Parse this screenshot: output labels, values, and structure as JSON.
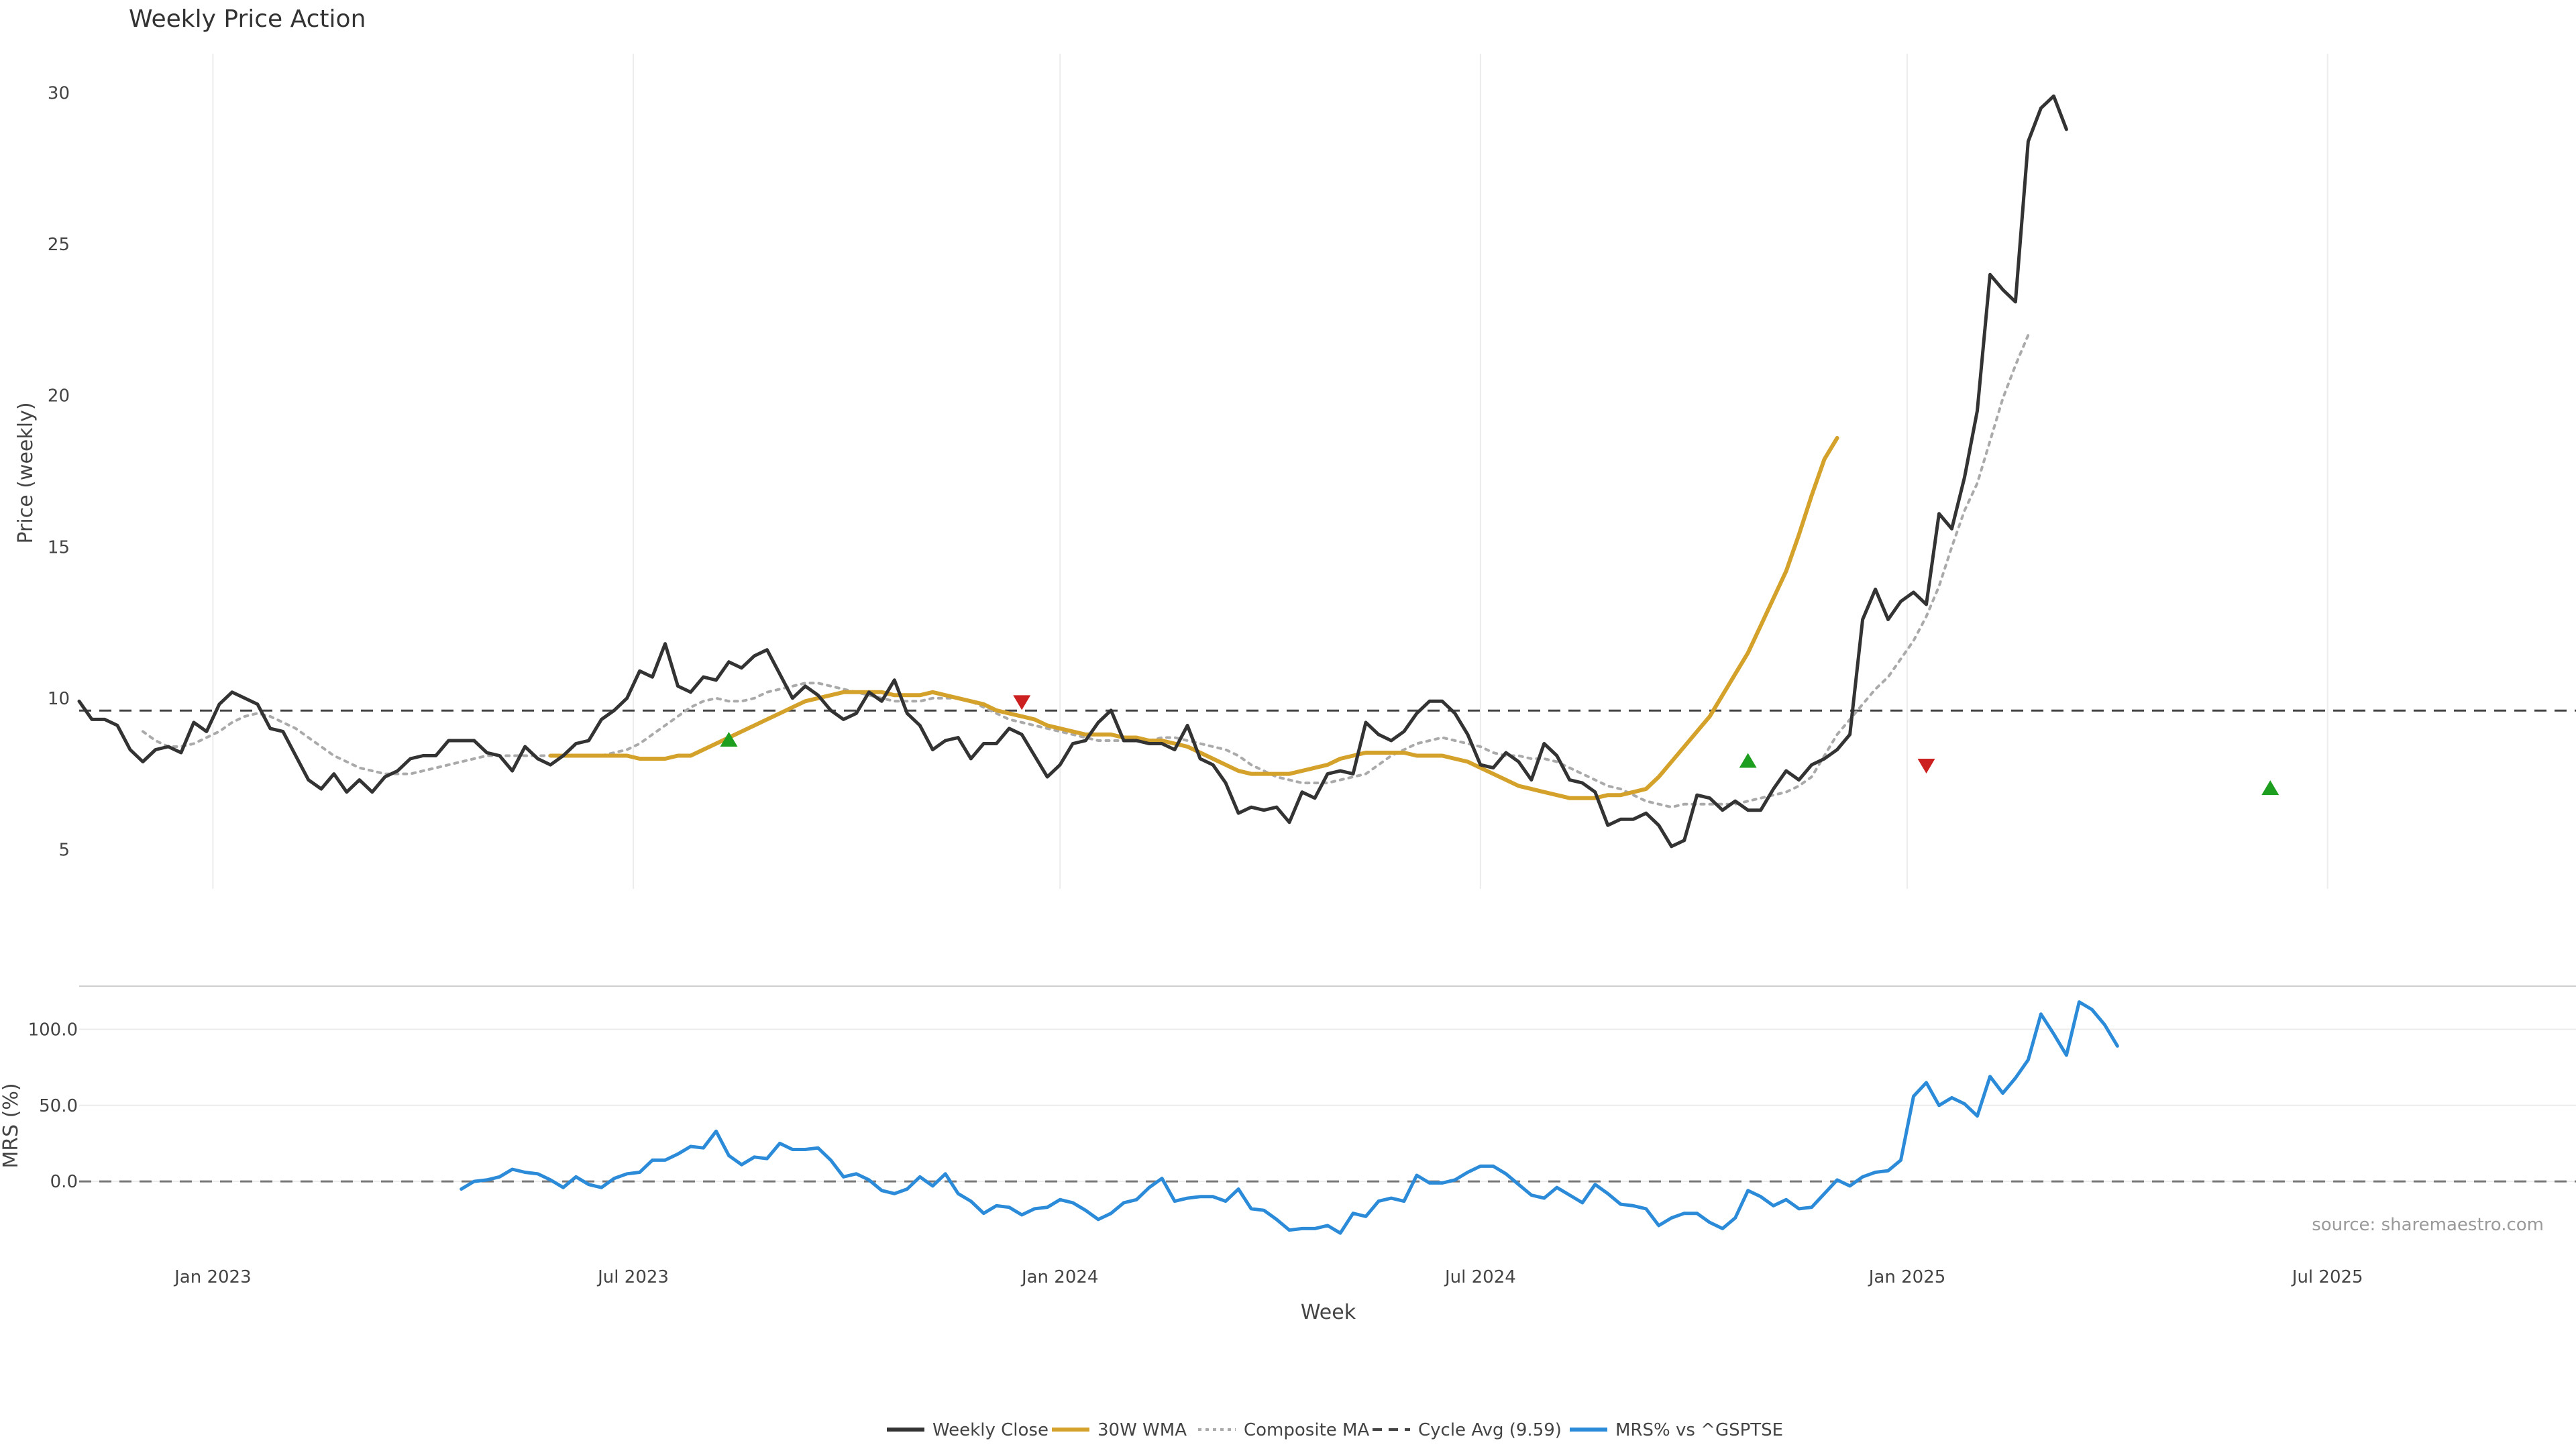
{
  "chart_data": {
    "type": "line",
    "title": "Weekly Price Action",
    "source": "source: sharemaestro.com",
    "x_axis": {
      "label": "Week",
      "range": [
        0,
        196
      ],
      "ticks": [
        {
          "x": 10.5,
          "label": "Jan 2023"
        },
        {
          "x": 43.5,
          "label": "Jul 2023"
        },
        {
          "x": 77,
          "label": "Jan 2024"
        },
        {
          "x": 110,
          "label": "Jul 2024"
        },
        {
          "x": 143.5,
          "label": "Jan 2025"
        },
        {
          "x": 176.5,
          "label": "Jul 2025"
        }
      ]
    },
    "price_panel": {
      "ylabel": "Price (weekly)",
      "ylim": [
        3.7,
        31.3
      ],
      "yticks": [
        5,
        10,
        15,
        20,
        25,
        30
      ],
      "weekly_close": [
        9.9,
        9.3,
        9.3,
        9.1,
        8.3,
        7.9,
        8.3,
        8.4,
        8.2,
        9.2,
        8.9,
        9.8,
        10.2,
        10.0,
        9.8,
        9.0,
        8.9,
        8.1,
        7.3,
        7.0,
        7.5,
        6.9,
        7.3,
        6.9,
        7.4,
        7.6,
        8.0,
        8.1,
        8.1,
        8.6,
        8.6,
        8.6,
        8.2,
        8.1,
        7.6,
        8.4,
        8.0,
        7.8,
        8.1,
        8.5,
        8.6,
        9.3,
        9.6,
        10.0,
        10.9,
        10.7,
        11.8,
        10.4,
        10.2,
        10.7,
        10.6,
        11.2,
        11.0,
        11.4,
        11.6,
        10.8,
        10.0,
        10.4,
        10.1,
        9.6,
        9.3,
        9.5,
        10.2,
        9.9,
        10.6,
        9.5,
        9.1,
        8.3,
        8.6,
        8.7,
        8.0,
        8.5,
        8.5,
        9.0,
        8.8,
        8.1,
        7.4,
        7.8,
        8.5,
        8.6,
        9.2,
        9.6,
        8.6,
        8.6,
        8.5,
        8.5,
        8.3,
        9.1,
        8.0,
        7.8,
        7.2,
        6.2,
        6.4,
        6.3,
        6.4,
        5.9,
        6.9,
        6.7,
        7.5,
        7.6,
        7.5,
        9.2,
        8.8,
        8.6,
        8.9,
        9.5,
        9.9,
        9.9,
        9.5,
        8.8,
        7.8,
        7.7,
        8.2,
        7.9,
        7.3,
        8.5,
        8.1,
        7.3,
        7.2,
        6.9,
        5.8,
        6.0,
        6.0,
        6.2,
        5.8,
        5.1,
        5.3,
        6.8,
        6.7,
        6.3,
        6.6,
        6.3,
        6.3,
        7.0,
        7.6,
        7.3,
        7.8,
        8.0,
        8.3,
        8.8,
        12.6,
        13.6,
        12.6,
        13.2,
        13.5,
        13.1,
        16.1,
        15.6,
        17.3,
        19.5,
        24.0,
        23.5,
        23.1,
        28.4,
        29.5,
        29.9,
        28.8
      ],
      "wma_30w": {
        "start_index": 37,
        "values": [
          8.1,
          8.1,
          8.1,
          8.1,
          8.1,
          8.1,
          8.1,
          8.0,
          8.0,
          8.0,
          8.1,
          8.1,
          8.3,
          8.5,
          8.7,
          8.9,
          9.1,
          9.3,
          9.5,
          9.7,
          9.9,
          10.0,
          10.1,
          10.2,
          10.2,
          10.2,
          10.2,
          10.1,
          10.1,
          10.1,
          10.2,
          10.1,
          10.0,
          9.9,
          9.8,
          9.6,
          9.5,
          9.4,
          9.3,
          9.1,
          9.0,
          8.9,
          8.8,
          8.8,
          8.8,
          8.7,
          8.7,
          8.6,
          8.6,
          8.5,
          8.4,
          8.2,
          8.0,
          7.8,
          7.6,
          7.5,
          7.5,
          7.5,
          7.5,
          7.6,
          7.7,
          7.8,
          8.0,
          8.1,
          8.2,
          8.2,
          8.2,
          8.2,
          8.1,
          8.1,
          8.1,
          8.0,
          7.9,
          7.7,
          7.5,
          7.3,
          7.1,
          7.0,
          6.9,
          6.8,
          6.7,
          6.7,
          6.7,
          6.8,
          6.8,
          6.9,
          7.0,
          7.4,
          7.9,
          8.4,
          8.9,
          9.4,
          10.1,
          10.8,
          11.5,
          12.4,
          13.3,
          14.2,
          15.4,
          16.7,
          17.9,
          18.6
        ]
      },
      "composite_ma": {
        "start_index": 5,
        "values": [
          8.9,
          8.6,
          8.4,
          8.4,
          8.5,
          8.7,
          8.9,
          9.2,
          9.4,
          9.5,
          9.4,
          9.2,
          9.0,
          8.7,
          8.4,
          8.1,
          7.9,
          7.7,
          7.6,
          7.5,
          7.5,
          7.5,
          7.6,
          7.7,
          7.8,
          7.9,
          8.0,
          8.1,
          8.1,
          8.1,
          8.1,
          8.1,
          8.1,
          8.1,
          8.1,
          8.1,
          8.1,
          8.2,
          8.3,
          8.5,
          8.8,
          9.1,
          9.4,
          9.7,
          9.9,
          10.0,
          9.9,
          9.9,
          10.0,
          10.2,
          10.3,
          10.4,
          10.5,
          10.5,
          10.4,
          10.3,
          10.2,
          10.1,
          10.0,
          9.9,
          9.9,
          9.9,
          10.0,
          10.0,
          10.0,
          9.9,
          9.7,
          9.5,
          9.3,
          9.2,
          9.1,
          9.0,
          8.9,
          8.8,
          8.7,
          8.6,
          8.6,
          8.6,
          8.6,
          8.6,
          8.7,
          8.7,
          8.6,
          8.5,
          8.4,
          8.3,
          8.1,
          7.8,
          7.6,
          7.4,
          7.3,
          7.2,
          7.2,
          7.2,
          7.3,
          7.4,
          7.5,
          7.8,
          8.1,
          8.3,
          8.5,
          8.6,
          8.7,
          8.6,
          8.5,
          8.4,
          8.2,
          8.1,
          8.1,
          8.0,
          8.0,
          7.9,
          7.7,
          7.5,
          7.3,
          7.1,
          7.0,
          6.8,
          6.6,
          6.5,
          6.4,
          6.5,
          6.5,
          6.5,
          6.5,
          6.5,
          6.6,
          6.7,
          6.8,
          6.9,
          7.1,
          7.4,
          8.1,
          8.8,
          9.3,
          9.8,
          10.3,
          10.7,
          11.3,
          11.9,
          12.7,
          13.7,
          15.0,
          16.2,
          17.1,
          18.5,
          19.9,
          21.0,
          22.0
        ]
      },
      "cycle_avg": {
        "label": "Cycle Avg (9.59)",
        "value": 9.59
      },
      "buy_signals": [
        {
          "index": 51,
          "value": 8.6
        },
        {
          "index": 131,
          "value": 7.9
        },
        {
          "index": 172,
          "value": 7.0
        }
      ],
      "sell_signals": [
        {
          "index": 74,
          "value": 9.9
        },
        {
          "index": 145,
          "value": 7.8
        }
      ]
    },
    "mrs_panel": {
      "ylabel": "MRS (%)",
      "ylim": [
        -37,
        124
      ],
      "yticks": [
        0,
        50,
        100
      ],
      "ytick_labels": [
        "0.0",
        "50.0",
        "100.0"
      ],
      "mrs": {
        "start_index": 30,
        "values": [
          -5,
          0,
          1,
          3,
          8,
          6,
          5,
          1,
          -4,
          3,
          -2,
          -4,
          2,
          5,
          6,
          14,
          14,
          18,
          23,
          22,
          33,
          17,
          11,
          16,
          15,
          25,
          21,
          21,
          22,
          14,
          3,
          5,
          1,
          -6,
          -8,
          -5,
          3,
          -3,
          5,
          -8,
          -13,
          -21,
          -16,
          -17,
          -22,
          -18,
          -17,
          -12,
          -14,
          -19,
          -25,
          -21,
          -14,
          -12,
          -4,
          2,
          -13,
          -11,
          -10,
          -10,
          -13,
          -5,
          -18,
          -19,
          -25,
          -32,
          -31,
          -31,
          -29,
          -34,
          -21,
          -23,
          -13,
          -11,
          -13,
          4,
          -1,
          -1,
          1,
          6,
          10,
          10,
          5,
          -2,
          -9,
          -11,
          -4,
          -9,
          -14,
          -2,
          -8,
          -15,
          -16,
          -18,
          -29,
          -24,
          -21,
          -21,
          -27,
          -31,
          -24,
          -6,
          -10,
          -16,
          -12,
          -18,
          -17,
          -8,
          1,
          -3,
          3,
          6,
          7,
          14,
          56,
          65,
          50,
          55,
          51,
          43,
          69,
          58,
          68,
          80,
          110,
          97,
          83,
          118,
          113,
          103,
          89
        ]
      },
      "zero_line": 0
    },
    "legend": [
      {
        "label": "Weekly Close",
        "color": "#333333",
        "style": "solid"
      },
      {
        "label": "30W WMA",
        "color": "#d4a22a",
        "style": "solid"
      },
      {
        "label": "Composite MA",
        "color": "#aaaaaa",
        "style": "dotted"
      },
      {
        "label": "Cycle Avg (9.59)",
        "color": "#444444",
        "style": "dashed"
      },
      {
        "label": "MRS% vs ^GSPTSE",
        "color": "#2b8bd9",
        "style": "solid"
      }
    ],
    "colors": {
      "close": "#333333",
      "wma": "#d4a22a",
      "composite": "#aaaaaa",
      "cycle": "#444444",
      "mrs": "#2b8bd9",
      "buy": "#1e9e1e",
      "sell": "#cc1f1f",
      "grid": "#ececec"
    }
  }
}
